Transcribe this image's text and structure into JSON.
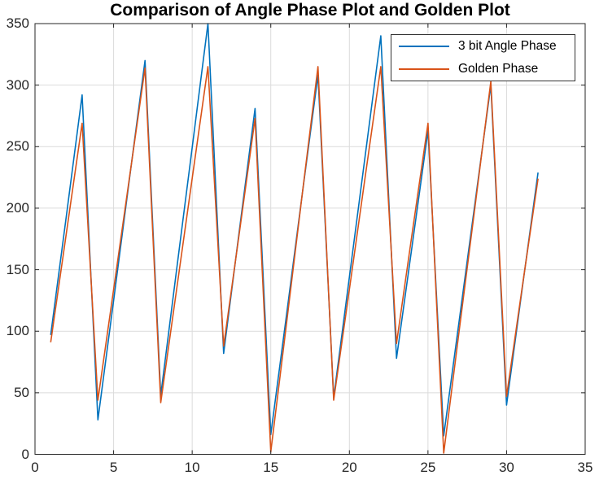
{
  "title": "Comparison of Angle Phase Plot and Golden Plot",
  "legend": {
    "items": [
      {
        "label": "3 bit Angle Phase",
        "color": "#0072BD"
      },
      {
        "label": "Golden Phase",
        "color": "#D95319"
      }
    ]
  },
  "colors": {
    "series_blue": "#0072BD",
    "series_orange": "#D95319",
    "grid": "#dbdbdb",
    "axis_box": "#262626",
    "tick_label": "#262626",
    "background": "#ffffff"
  },
  "chart_data": {
    "type": "line",
    "title": "Comparison of Angle Phase Plot and Golden Plot",
    "xlabel": "",
    "ylabel": "",
    "xlim": [
      0,
      35
    ],
    "ylim": [
      0,
      350
    ],
    "xticks": [
      0,
      5,
      10,
      15,
      20,
      25,
      30,
      35
    ],
    "yticks": [
      0,
      50,
      100,
      150,
      200,
      250,
      300,
      350
    ],
    "grid": true,
    "legend_position": "top-right",
    "x": [
      1,
      2,
      3,
      4,
      5,
      6,
      7,
      8,
      9,
      10,
      11,
      12,
      13,
      14,
      15,
      16,
      17,
      18,
      19,
      20,
      21,
      22,
      23,
      24,
      25,
      26,
      27,
      28,
      29,
      30,
      31,
      32
    ],
    "series": [
      {
        "name": "3 bit Angle Phase",
        "color": "#0072BD",
        "values": [
          97,
          194,
          292,
          28,
          125,
          223,
          320,
          48,
          149,
          249,
          350,
          82,
          182,
          281,
          16,
          113,
          211,
          308,
          46,
          144,
          242,
          340,
          78,
          170,
          263,
          15,
          110,
          205,
          300,
          40,
          135,
          229
        ]
      },
      {
        "name": "Golden Phase",
        "color": "#D95319",
        "values": [
          91,
          180,
          269,
          44,
          134,
          224,
          314,
          42,
          133,
          224,
          315,
          88,
          180,
          273,
          2,
          106,
          211,
          315,
          44,
          134,
          225,
          315,
          90,
          180,
          269,
          1,
          102,
          202,
          303,
          47,
          136,
          224
        ]
      }
    ]
  }
}
